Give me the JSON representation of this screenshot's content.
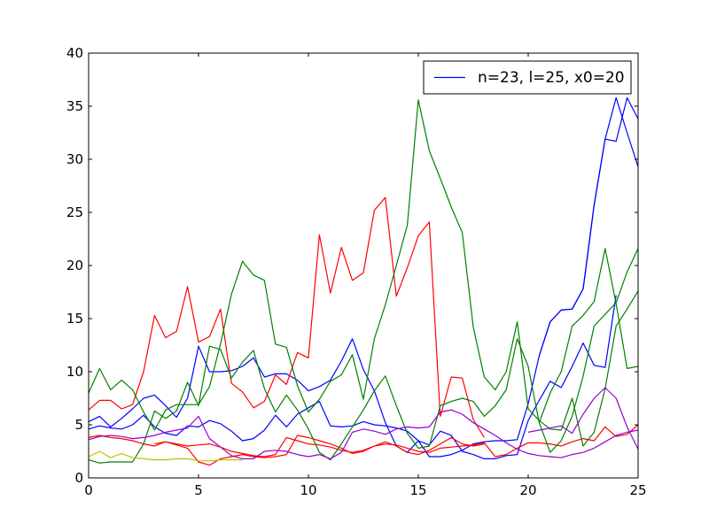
{
  "chart_data": {
    "type": "line",
    "title": "",
    "xlabel": "",
    "ylabel": "",
    "xlim": [
      0,
      25
    ],
    "ylim": [
      0,
      40
    ],
    "xticks": [
      0,
      5,
      10,
      15,
      20,
      25
    ],
    "yticks": [
      0,
      5,
      10,
      15,
      20,
      25,
      30,
      35,
      40
    ],
    "grid": false,
    "legend": {
      "position": "top-right",
      "entries": [
        {
          "label": "n=23, l=25, x0=20",
          "color": "#0000ff"
        }
      ]
    },
    "series": [
      {
        "color": "#0000ff",
        "x": [
          0,
          0.5,
          1,
          1.5,
          2,
          2.5,
          3,
          3.5,
          4,
          4.5,
          5,
          5.5,
          6,
          6.5,
          7,
          7.5,
          8,
          8.5,
          9,
          9.5,
          10,
          10.5,
          11,
          11.5,
          12,
          12.5,
          13,
          13.5,
          14,
          14.5,
          15,
          15.5,
          16,
          16.5,
          17,
          17.5,
          18,
          18.5,
          19,
          19.5,
          20,
          20.5,
          21,
          21.5,
          22,
          22.5,
          23,
          23.5,
          24,
          24.5,
          25
        ],
        "y": [
          5.3,
          5.8,
          4.8,
          5.6,
          6.5,
          7.5,
          7.8,
          6.8,
          5.7,
          7.5,
          12.4,
          10.0,
          10.0,
          10.1,
          10.5,
          11.3,
          9.5,
          9.8,
          9.8,
          9.2,
          8.2,
          8.6,
          9.2,
          11.0,
          13.1,
          10.2,
          8.2,
          5.2,
          3.0,
          2.4,
          3.5,
          2.0,
          2.0,
          2.2,
          2.6,
          3.2,
          3.4,
          3.5,
          3.5,
          3.6,
          7.0,
          11.5,
          14.7,
          15.8,
          15.9,
          17.8,
          25.7,
          31.9,
          31.7,
          35.8,
          33.8
        ]
      },
      {
        "color": "#0000ff",
        "x": [
          20.5,
          21,
          21.5,
          22,
          22.5,
          23,
          23.5,
          24,
          24.5,
          25
        ],
        "y": [
          11.5,
          14.7,
          15.8,
          15.9,
          17.8,
          25.7,
          31.9,
          35.8,
          32.5,
          29.3
        ]
      },
      {
        "color": "#0000ff",
        "x": [
          0,
          0.5,
          1,
          1.5,
          2,
          2.5,
          3,
          3.5,
          4,
          4.5,
          5,
          5.5,
          6,
          6.5,
          7,
          7.5,
          8,
          8.5,
          9,
          9.5,
          10,
          10.5,
          11,
          11.5,
          12,
          12.5,
          13,
          13.5,
          14,
          14.5,
          15,
          15.5,
          16,
          16.5,
          17,
          17.5,
          18,
          18.5,
          19,
          19.5,
          20,
          20.5,
          21,
          21.5,
          22,
          22.5,
          23,
          23.5,
          24
        ],
        "y": [
          4.6,
          4.9,
          4.7,
          4.6,
          5.0,
          5.9,
          4.8,
          4.2,
          4.0,
          4.9,
          4.8,
          5.4,
          5.1,
          4.4,
          3.5,
          3.7,
          4.5,
          5.9,
          4.8,
          6.0,
          6.6,
          7.2,
          4.9,
          4.8,
          4.9,
          5.3,
          5.0,
          4.9,
          4.7,
          4.4,
          3.5,
          3.1,
          4.4,
          4.0,
          2.5,
          2.2,
          1.8,
          1.8,
          2.1,
          2.2,
          5.4,
          7.3,
          9.1,
          8.5,
          10.5,
          12.7,
          10.6,
          10.4,
          17.2
        ]
      },
      {
        "color": "#ff0000",
        "x": [
          0,
          0.5,
          1,
          1.5,
          2,
          2.5,
          3,
          3.5,
          4,
          4.5,
          5,
          5.5,
          6,
          6.5,
          7,
          7.5,
          8,
          8.5,
          9,
          9.5,
          10,
          10.5,
          11,
          11.5,
          12,
          12.5,
          13,
          13.5,
          14,
          14.5,
          15,
          15.5,
          16,
          16.5,
          17,
          17.5,
          18
        ],
        "y": [
          6.4,
          7.3,
          7.3,
          6.5,
          6.9,
          10.0,
          15.3,
          13.2,
          13.8,
          18.0,
          12.8,
          13.3,
          15.9,
          8.9,
          8.1,
          6.6,
          7.2,
          9.7,
          8.8,
          11.8,
          11.3,
          22.9,
          17.4,
          21.7,
          18.6,
          19.3,
          25.2,
          26.4,
          17.1,
          19.8,
          22.8,
          24.1,
          5.8,
          9.5,
          9.4,
          5.5,
          3.8
        ]
      },
      {
        "color": "#ff0000",
        "x": [
          0,
          0.5,
          1,
          1.5,
          2,
          2.5,
          3,
          3.5,
          4,
          4.5,
          5,
          5.5,
          6,
          6.5,
          7,
          7.5,
          8,
          8.5,
          9,
          9.5,
          10,
          10.5,
          11,
          11.5,
          12,
          12.5,
          13,
          13.5,
          14,
          14.5,
          15,
          15.5,
          16,
          16.5,
          17,
          17.5,
          18,
          18.5,
          19,
          19.5,
          20,
          20.5,
          21,
          21.5,
          22,
          22.5,
          23,
          23.5,
          24,
          24.5,
          25
        ],
        "y": [
          3.8,
          4.0,
          3.8,
          3.7,
          3.5,
          3.2,
          3.0,
          3.4,
          3.2,
          3.0,
          3.1,
          3.2,
          2.9,
          2.5,
          2.3,
          2.1,
          2.0,
          2.2,
          3.8,
          3.5,
          3.2,
          3.1,
          2.9,
          2.6,
          2.4,
          2.6,
          3.0,
          3.2,
          3.1,
          2.8,
          2.5,
          2.4,
          2.8,
          2.9,
          3.0,
          3.1,
          3.3,
          2.0,
          2.2,
          2.8,
          3.3,
          3.3,
          3.2,
          3.0,
          3.4,
          3.7,
          3.5,
          4.8,
          3.9,
          4.1,
          5.0
        ]
      },
      {
        "color": "#ff0000",
        "x": [
          3,
          3.5,
          4,
          4.5,
          5,
          5.5,
          6,
          6.5,
          7,
          7.5,
          8,
          8.5,
          9,
          9.5,
          10,
          10.5,
          11,
          11.5,
          12,
          12.5,
          13,
          13.5,
          14,
          14.5,
          15,
          15.5,
          16,
          16.5,
          17,
          17.5,
          18
        ],
        "y": [
          3.2,
          3.4,
          3.1,
          2.8,
          1.5,
          1.2,
          1.8,
          2.0,
          2.2,
          2.0,
          1.9,
          2.0,
          2.2,
          4.0,
          3.8,
          3.5,
          3.2,
          2.8,
          2.3,
          2.5,
          3.0,
          3.4,
          3.0,
          2.4,
          2.2,
          2.6,
          3.2,
          3.8,
          3.2,
          3.0,
          3.2
        ]
      },
      {
        "color": "#008000",
        "x": [
          0,
          0.5,
          1,
          1.5,
          2,
          2.5,
          3,
          3.5,
          4,
          4.5,
          5,
          5.5,
          6,
          6.5,
          7,
          7.5,
          8,
          8.5,
          9,
          9.5,
          10,
          10.5,
          11,
          11.5,
          12,
          12.5,
          13,
          13.5,
          14,
          14.5,
          15,
          15.5,
          16,
          16.5,
          17,
          17.5,
          18,
          18.5,
          19,
          19.5,
          20,
          20.5,
          21,
          21.5,
          22,
          22.5,
          23,
          23.5,
          24,
          24.5,
          25
        ],
        "y": [
          8.0,
          10.3,
          8.3,
          9.2,
          8.3,
          6.2,
          4.5,
          6.4,
          6.9,
          6.9,
          6.9,
          8.6,
          12.6,
          17.3,
          20.4,
          19.1,
          18.6,
          12.6,
          12.3,
          8.7,
          6.2,
          7.4,
          9.1,
          9.7,
          11.6,
          7.4,
          13.1,
          16.3,
          20.0,
          23.8,
          35.6,
          30.8,
          28.2,
          25.5,
          23.1,
          14.2,
          9.5,
          8.3,
          10.0,
          14.7,
          6.5,
          5.4,
          4.6,
          4.5,
          7.5,
          3.0,
          4.3,
          8.4,
          14.3,
          15.9,
          17.6
        ]
      },
      {
        "color": "#008000",
        "x": [
          0,
          0.5,
          1,
          1.5,
          2,
          2.5,
          3,
          3.5,
          4,
          4.5,
          5,
          5.5,
          6,
          6.5,
          7,
          7.5,
          8,
          8.5,
          9,
          9.5,
          10,
          10.5,
          11,
          11.5,
          12,
          12.5,
          13,
          13.5,
          14,
          14.5,
          15,
          15.5,
          16,
          16.5,
          17,
          17.5,
          18,
          18.5,
          19,
          19.5,
          20,
          20.5,
          21,
          21.5,
          22,
          22.5,
          23,
          23.5,
          24,
          24.5,
          25
        ],
        "y": [
          1.7,
          1.4,
          1.5,
          1.5,
          1.5,
          3.2,
          6.3,
          5.6,
          6.3,
          9.0,
          6.8,
          12.4,
          12.1,
          9.4,
          10.9,
          12.0,
          8.4,
          6.2,
          7.8,
          6.4,
          4.6,
          2.4,
          1.7,
          3.2,
          4.8,
          6.4,
          8.2,
          9.6,
          6.8,
          4.2,
          2.8,
          3.0,
          6.8,
          7.2,
          7.5,
          7.2,
          5.8,
          6.8,
          8.3,
          13.1,
          10.5,
          5.2,
          2.4,
          3.5,
          5.8,
          9.6,
          14.3,
          15.4,
          16.5,
          19.4,
          21.6
        ]
      },
      {
        "color": "#008000",
        "x": [
          20.5,
          21,
          21.5,
          22,
          22.5,
          23,
          23.5,
          24,
          24.5,
          25
        ],
        "y": [
          5.2,
          8.0,
          10.0,
          14.3,
          15.3,
          16.6,
          21.6,
          16.4,
          10.3,
          10.5
        ]
      },
      {
        "color": "#9400d3",
        "x": [
          0,
          0.5,
          1,
          1.5,
          2,
          2.5,
          3,
          3.5,
          4,
          4.5,
          5,
          5.5,
          6,
          6.5,
          7,
          7.5,
          8,
          8.5,
          9,
          9.5,
          10,
          10.5,
          11,
          11.5,
          12,
          12.5,
          13,
          13.5,
          14,
          14.5,
          15,
          15.5,
          16,
          16.5,
          17,
          17.5,
          18,
          18.5,
          19,
          19.5,
          20,
          20.5,
          21,
          21.5,
          22,
          22.5,
          23,
          23.5,
          24,
          24.5,
          25
        ],
        "y": [
          3.6,
          3.9,
          4.0,
          3.9,
          3.7,
          3.8,
          4.0,
          4.3,
          4.5,
          4.7,
          5.8,
          3.7,
          2.9,
          2.1,
          1.8,
          1.8,
          2.5,
          2.6,
          2.5,
          2.2,
          2.0,
          2.2,
          1.8,
          2.4,
          4.3,
          4.6,
          4.4,
          4.1,
          4.6,
          4.8,
          4.7,
          4.8,
          6.2,
          6.4,
          6.0,
          5.2,
          4.6,
          4.0,
          3.3,
          2.7,
          2.3,
          2.1,
          2.0,
          1.9,
          2.2,
          2.4,
          2.8,
          3.4,
          4.0,
          4.3,
          4.5
        ]
      },
      {
        "color": "#9400d3",
        "x": [
          20,
          20.5,
          21,
          21.5,
          22,
          22.5,
          23,
          23.5,
          24,
          24.5,
          25
        ],
        "y": [
          4.3,
          4.5,
          4.7,
          4.9,
          4.2,
          6.0,
          7.5,
          8.5,
          7.5,
          4.8,
          2.7
        ]
      },
      {
        "color": "#bfbf00",
        "x": [
          0,
          0.5,
          1,
          1.5,
          2,
          2.5,
          3,
          3.5,
          4,
          4.5,
          5,
          5.5,
          6,
          6.5,
          7
        ],
        "y": [
          2.0,
          2.5,
          1.9,
          2.3,
          1.9,
          1.8,
          1.7,
          1.7,
          1.8,
          1.8,
          1.6,
          1.6,
          1.7,
          1.7,
          1.7
        ]
      }
    ]
  }
}
